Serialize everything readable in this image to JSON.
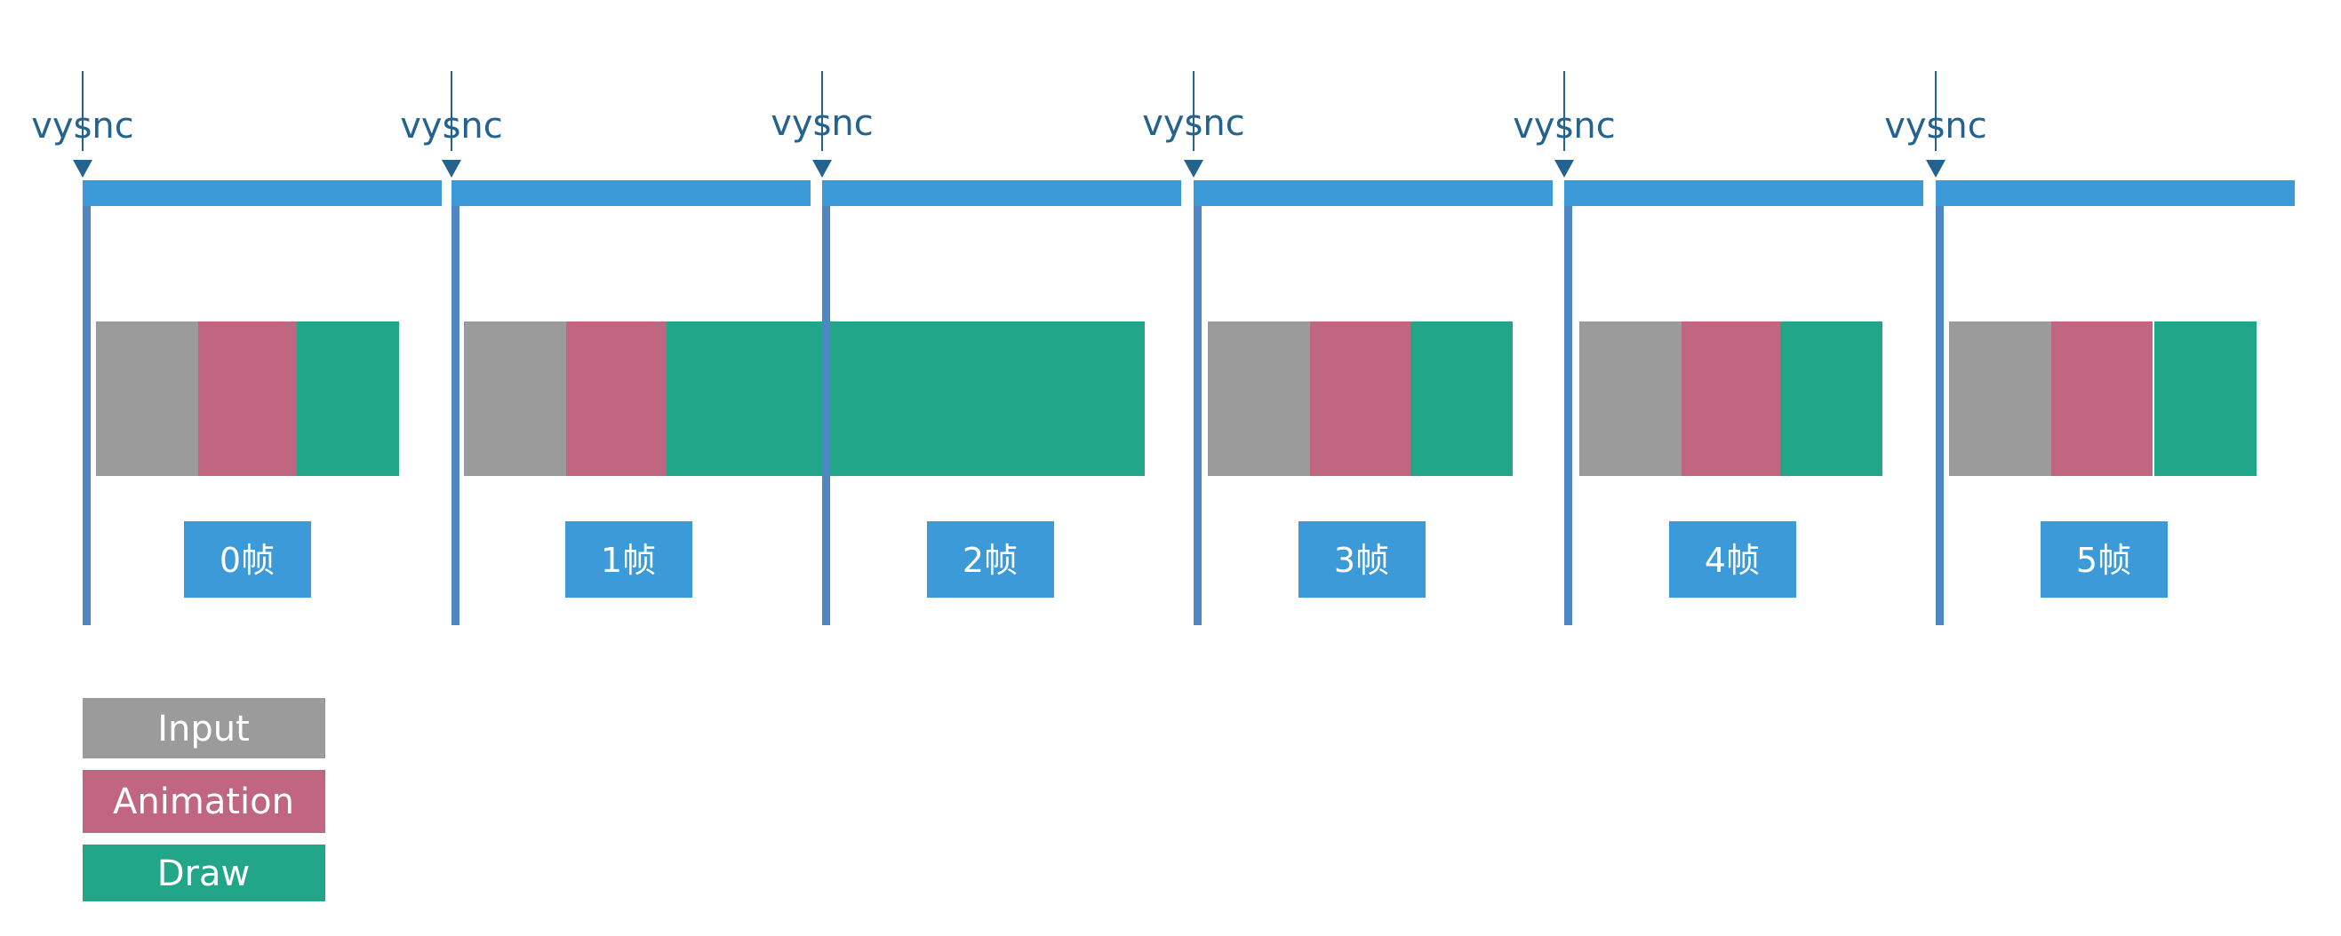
{
  "colors": {
    "vsync_text": "#24628f",
    "vsync_bar": "#3d9ad9",
    "divider": "#4f86c6",
    "frame_badge": "#3d9ad9",
    "input": "#9b9b9b",
    "animation": "#c06680",
    "draw": "#22a68a"
  },
  "vsync_labels": [
    "vysnc",
    "vysnc",
    "vysnc",
    "vysnc",
    "vysnc",
    "vysnc"
  ],
  "frames": [
    {
      "label": "0帧"
    },
    {
      "label": "1帧"
    },
    {
      "label": "2帧"
    },
    {
      "label": "3帧"
    },
    {
      "label": "4帧"
    },
    {
      "label": "5帧"
    }
  ],
  "legend": [
    {
      "label": "Input",
      "color_key": "input"
    },
    {
      "label": "Animation",
      "color_key": "animation"
    },
    {
      "label": "Draw",
      "color_key": "draw"
    }
  ]
}
